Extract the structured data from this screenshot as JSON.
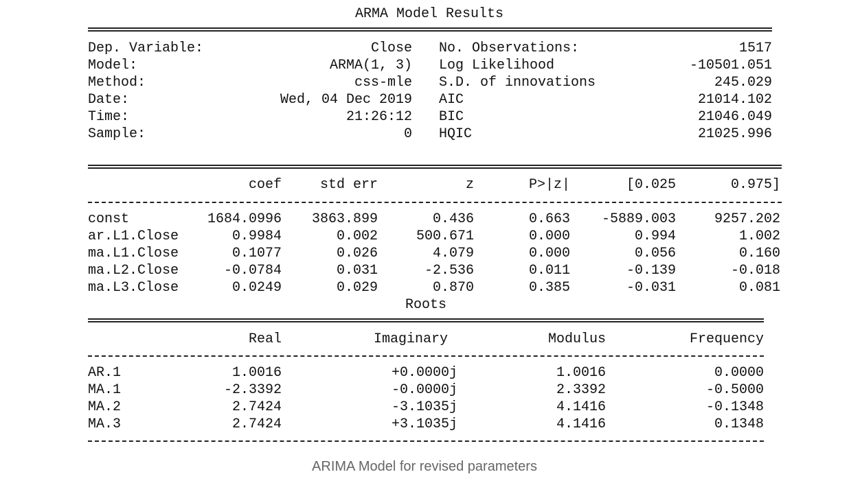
{
  "title": "ARMA Model Results",
  "summary": {
    "left": [
      {
        "label": "Dep. Variable:",
        "value": "Close"
      },
      {
        "label": "Model:",
        "value": "ARMA(1, 3)"
      },
      {
        "label": "Method:",
        "value": "css-mle"
      },
      {
        "label": "Date:",
        "value": "Wed, 04 Dec 2019"
      },
      {
        "label": "Time:",
        "value": "21:26:12"
      },
      {
        "label": "Sample:",
        "value": "0"
      }
    ],
    "right": [
      {
        "label": "No. Observations:",
        "value": "1517"
      },
      {
        "label": "Log Likelihood",
        "value": "-10501.051"
      },
      {
        "label": "S.D. of innovations",
        "value": "245.029"
      },
      {
        "label": "AIC",
        "value": "21014.102"
      },
      {
        "label": "BIC",
        "value": "21046.049"
      },
      {
        "label": "HQIC",
        "value": "21025.996"
      }
    ]
  },
  "coef_table": {
    "headers": [
      "coef",
      "std err",
      "z",
      "P>|z|",
      "[0.025",
      "0.975]"
    ],
    "rows": [
      {
        "name": "const",
        "values": [
          "1684.0996",
          "3863.899",
          "0.436",
          "0.663",
          "-5889.003",
          "9257.202"
        ]
      },
      {
        "name": "ar.L1.Close",
        "values": [
          "0.9984",
          "0.002",
          "500.671",
          "0.000",
          "0.994",
          "1.002"
        ]
      },
      {
        "name": "ma.L1.Close",
        "values": [
          "0.1077",
          "0.026",
          "4.079",
          "0.000",
          "0.056",
          "0.160"
        ]
      },
      {
        "name": "ma.L2.Close",
        "values": [
          "-0.0784",
          "0.031",
          "-2.536",
          "0.011",
          "-0.139",
          "-0.018"
        ]
      },
      {
        "name": "ma.L3.Close",
        "values": [
          "0.0249",
          "0.029",
          "0.870",
          "0.385",
          "-0.031",
          "0.081"
        ]
      }
    ]
  },
  "roots_title": "Roots",
  "roots_table": {
    "headers": [
      "Real",
      "Imaginary",
      "Modulus",
      "Frequency"
    ],
    "rows": [
      {
        "name": "AR.1",
        "values": [
          "1.0016",
          "+0.0000j",
          "1.0016",
          "0.0000"
        ]
      },
      {
        "name": "MA.1",
        "values": [
          "-2.3392",
          "-0.0000j",
          "2.3392",
          "-0.5000"
        ]
      },
      {
        "name": "MA.2",
        "values": [
          "2.7424",
          "-3.1035j",
          "4.1416",
          "-0.1348"
        ]
      },
      {
        "name": "MA.3",
        "values": [
          "2.7424",
          "+3.1035j",
          "4.1416",
          "0.1348"
        ]
      }
    ]
  },
  "caption": "ARIMA Model for revised parameters"
}
